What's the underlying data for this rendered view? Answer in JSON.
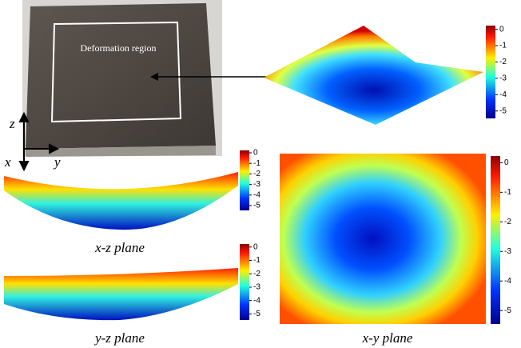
{
  "photo": {
    "label": "Deformation region",
    "axes": {
      "z": "z",
      "x": "x",
      "y": "y"
    }
  },
  "colorbars": [
    {
      "ticks": [
        0,
        -1,
        -2,
        -3,
        -4,
        -5
      ]
    },
    {
      "ticks": [
        0,
        -1,
        -2,
        -3,
        -4,
        -5
      ]
    },
    {
      "ticks": [
        0,
        -1,
        -2,
        -3,
        -4,
        -5
      ]
    },
    {
      "ticks": [
        0,
        -1,
        -2,
        -3,
        -4,
        -5
      ]
    }
  ],
  "captions": {
    "xz": "x-z plane",
    "yz": "y-z plane",
    "xy": "x-y plane"
  }
}
